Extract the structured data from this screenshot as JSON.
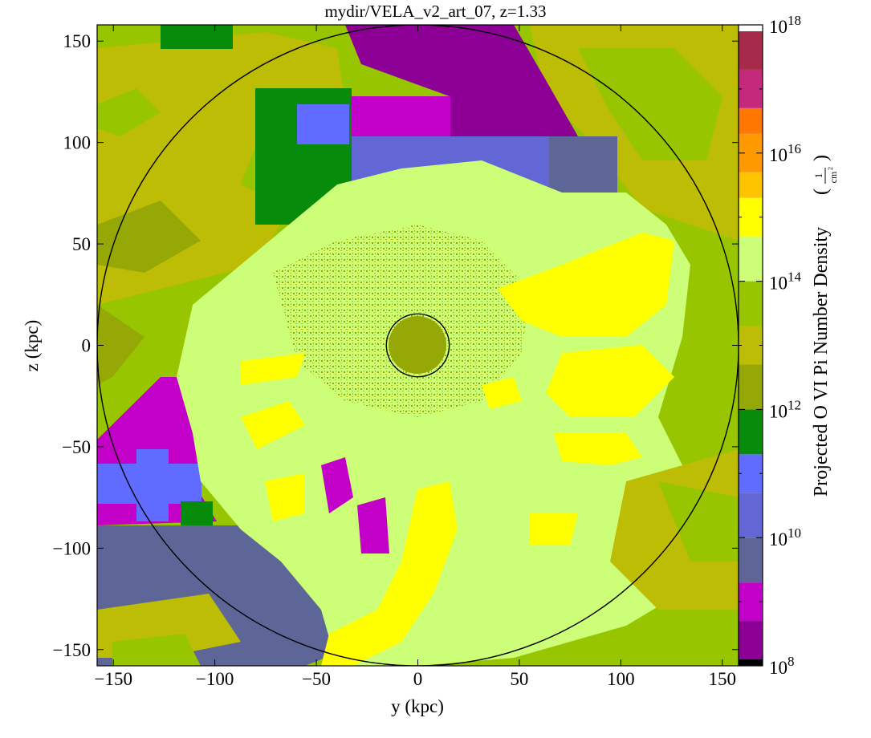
{
  "chart_data": {
    "type": "heatmap",
    "title": "mydir/VELA_v2_art_07, z=1.33",
    "xlabel": "y  (kpc)",
    "ylabel": "z  (kpc)",
    "xlim": [
      -158,
      158
    ],
    "ylim": [
      -158,
      158
    ],
    "xticks": [
      -150,
      -100,
      -50,
      0,
      50,
      100,
      150
    ],
    "yticks": [
      -150,
      -100,
      -50,
      0,
      50,
      100,
      150
    ],
    "x_tick_labels": [
      "−150",
      "−100",
      "−50",
      "0",
      "50",
      "100",
      "150"
    ],
    "y_tick_labels": [
      "−150",
      "−100",
      "−50",
      "0",
      "50",
      "100",
      "150"
    ],
    "circles": [
      {
        "center": [
          0,
          0
        ],
        "radius": 158
      },
      {
        "center": [
          0,
          0
        ],
        "radius": 15.5
      }
    ],
    "colorbar": {
      "label": "Projected O VI Pi Number Density",
      "unit": "1/cm²",
      "unit_numerator": "1",
      "unit_denominator": "cm",
      "unit_exponent": "2",
      "scale": "log",
      "range": [
        100000000.0,
        1e+18
      ],
      "tick_exponents": [
        8,
        10,
        12,
        14,
        16,
        18
      ],
      "tick_base": "10",
      "bands": [
        {
          "from": 8.0,
          "to": 8.1,
          "color": "#000000"
        },
        {
          "from": 8.1,
          "to": 8.7,
          "color": "#8c0095"
        },
        {
          "from": 8.7,
          "to": 9.3,
          "color": "#c200c8"
        },
        {
          "from": 9.3,
          "to": 10.0,
          "color": "#5e6697"
        },
        {
          "from": 10.0,
          "to": 10.7,
          "color": "#6367d6"
        },
        {
          "from": 10.7,
          "to": 11.3,
          "color": "#5f6cff"
        },
        {
          "from": 11.3,
          "to": 12.0,
          "color": "#068c0a"
        },
        {
          "from": 12.0,
          "to": 12.7,
          "color": "#95a805"
        },
        {
          "from": 12.7,
          "to": 13.3,
          "color": "#bdbd05"
        },
        {
          "from": 13.3,
          "to": 14.0,
          "color": "#97c601"
        },
        {
          "from": 14.0,
          "to": 14.7,
          "color": "#ccff77"
        },
        {
          "from": 14.7,
          "to": 15.3,
          "color": "#ffff00"
        },
        {
          "from": 15.3,
          "to": 15.7,
          "color": "#ffc400"
        },
        {
          "from": 15.7,
          "to": 16.3,
          "color": "#ff9900"
        },
        {
          "from": 16.3,
          "to": 16.7,
          "color": "#ff7700"
        },
        {
          "from": 16.7,
          "to": 17.3,
          "color": "#c4297b"
        },
        {
          "from": 17.3,
          "to": 17.9,
          "color": "#a62b4b"
        },
        {
          "from": 17.9,
          "to": 18.0,
          "color": "#ffffff"
        }
      ]
    },
    "regions": [
      {
        "name": "outer-background",
        "color": "#97c601"
      },
      {
        "name": "upper-left-olive",
        "color": "#bdbd05"
      },
      {
        "name": "top-magenta",
        "color": "#8c0095"
      },
      {
        "name": "upper-blue-block",
        "color": "#6367d6"
      },
      {
        "name": "upper-magenta-block",
        "color": "#c200c8"
      },
      {
        "name": "green-blocks",
        "color": "#068c0a"
      },
      {
        "name": "left-magenta-block",
        "color": "#c200c8"
      },
      {
        "name": "left-blue-block",
        "color": "#5f6cff"
      },
      {
        "name": "lower-left-slate",
        "color": "#5e6697"
      },
      {
        "name": "central-light-green",
        "color": "#ccff77"
      },
      {
        "name": "yellow-filaments",
        "color": "#ffff00"
      },
      {
        "name": "core-olive",
        "color": "#95a805"
      }
    ]
  }
}
